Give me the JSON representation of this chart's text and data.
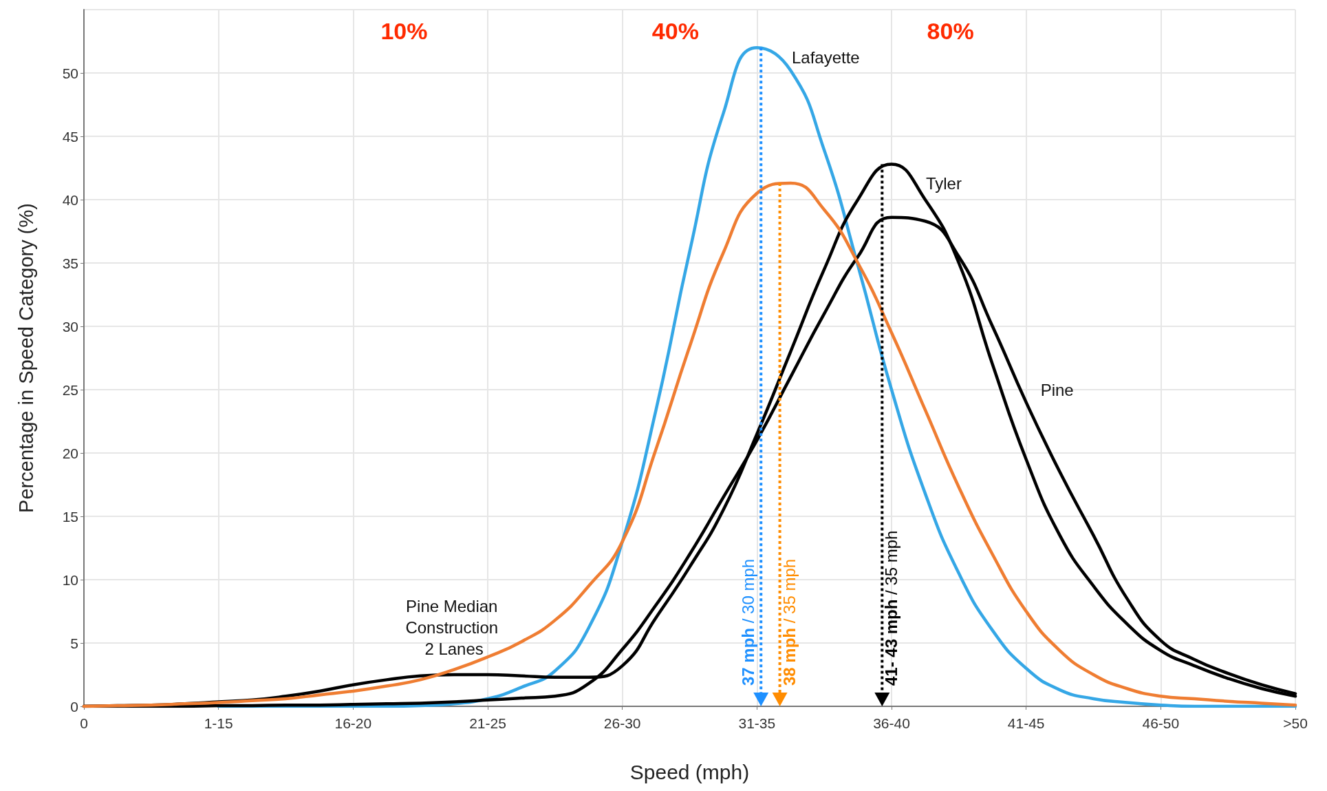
{
  "chart_data": {
    "type": "line",
    "xlabel": "Speed (mph)",
    "ylabel": "Percentage in Speed Category (%)",
    "categories": [
      "0",
      null,
      null,
      null,
      "1-15",
      null,
      null,
      null,
      "16-20",
      null,
      null,
      null,
      "21-25",
      null,
      null,
      null,
      "26-30",
      null,
      null,
      null,
      "31-35",
      null,
      null,
      null,
      "36-40",
      null,
      null,
      null,
      "41-45",
      null,
      null,
      null,
      "46-50",
      null,
      null,
      null,
      ">50"
    ],
    "series": [
      {
        "name": "Lafayette",
        "color": "#35a7e6",
        "values": [
          null,
          null,
          null,
          null,
          0,
          0,
          0,
          0,
          0,
          0,
          0.05,
          0.2,
          0.6,
          1.5,
          2.8,
          6.2,
          13,
          23.4,
          35.9,
          46.8,
          52,
          50.2,
          43.9,
          34.8,
          25,
          16.8,
          10.5,
          6,
          3,
          1.3,
          0.6,
          0.3,
          0.1,
          0,
          0,
          0,
          0
        ]
      },
      {
        "name": "Pine Median Construction 2 Lanes",
        "color": "#ef7d32",
        "values": [
          0,
          0.05,
          0.1,
          0.2,
          0.3,
          0.45,
          0.6,
          0.9,
          1.2,
          1.6,
          2.1,
          2.9,
          3.9,
          5.1,
          6.8,
          9.5,
          13,
          20.3,
          28.4,
          35.8,
          40.5,
          41.3,
          39.2,
          35,
          29.5,
          23.4,
          17.3,
          12,
          7.5,
          4.4,
          2.5,
          1.4,
          0.8,
          0.6,
          0.4,
          0.25,
          0.1
        ]
      },
      {
        "name": "Tyler",
        "color": "#000000",
        "values": [
          0,
          0.05,
          0.1,
          0.2,
          0.35,
          0.5,
          0.8,
          1.2,
          1.7,
          2.1,
          2.4,
          2.5,
          2.5,
          2.4,
          2.3,
          2.3,
          3.2,
          7,
          11,
          15.5,
          21.5,
          28,
          34.5,
          40,
          42.8,
          40,
          35,
          27,
          19.5,
          13.5,
          9.5,
          6.5,
          4.4,
          3.2,
          2.2,
          1.4,
          0.8
        ]
      },
      {
        "name": "Pine",
        "color": "#000000",
        "values": [
          0,
          0,
          0,
          0,
          0.05,
          0.05,
          0.1,
          0.1,
          0.15,
          0.2,
          0.25,
          0.35,
          0.5,
          0.65,
          0.8,
          1.8,
          4.5,
          8,
          12,
          16.5,
          21,
          26,
          31,
          35.5,
          38.6,
          38.3,
          35.5,
          30,
          24,
          18.5,
          13.5,
          8.5,
          5.2,
          3.7,
          2.6,
          1.7,
          1
        ]
      }
    ],
    "ylim": [
      0,
      55
    ],
    "yticks": [
      0,
      5,
      10,
      15,
      20,
      25,
      30,
      35,
      40,
      45,
      50
    ],
    "annotations": [
      "10%",
      "40%",
      "80%",
      "37 mph / 30 mph",
      "38 mph / 35 mph",
      "41- 43 mph / 35 mph"
    ],
    "grid": true,
    "marker": "none",
    "line_style": "solid"
  }
}
